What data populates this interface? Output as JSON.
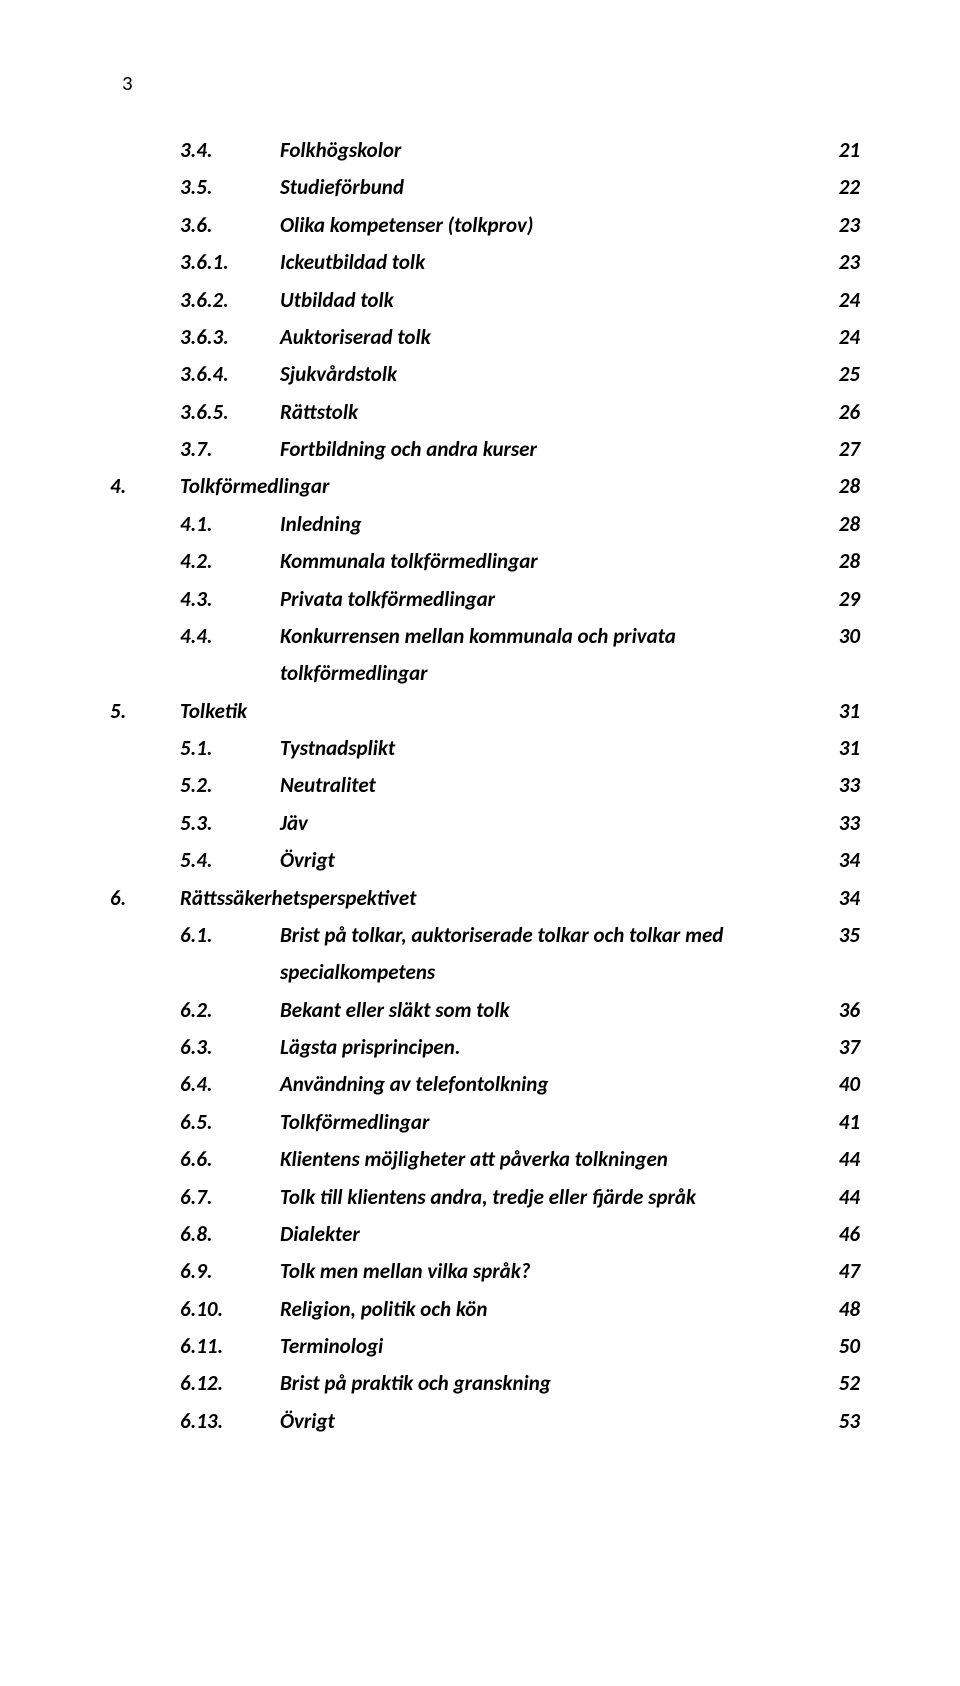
{
  "page_number_top": "3",
  "typography": {
    "font_family": "Calibri",
    "font_size_pt": 16,
    "italic": true,
    "bold": true,
    "line_height": 1.78,
    "color": "#000000",
    "background": "#ffffff"
  },
  "entries": [
    {
      "indent": 1,
      "num": "3.4.",
      "title": "Folkhögskolor",
      "page": "21"
    },
    {
      "indent": 1,
      "num": "3.5.",
      "title": "Studieförbund",
      "page": "22"
    },
    {
      "indent": 1,
      "num": "3.6.",
      "title": "Olika kompetenser (tolkprov)",
      "page": "23"
    },
    {
      "indent": 1,
      "num": "3.6.1.",
      "title": "Ickeutbildad tolk",
      "page": "23",
      "sub": true
    },
    {
      "indent": 1,
      "num": "3.6.2.",
      "title": "Utbildad tolk",
      "page": "24",
      "sub": true
    },
    {
      "indent": 1,
      "num": "3.6.3.",
      "title": "Auktoriserad tolk",
      "page": "24",
      "sub": true
    },
    {
      "indent": 1,
      "num": "3.6.4.",
      "title": "Sjukvårdstolk",
      "page": "25",
      "sub": true
    },
    {
      "indent": 1,
      "num": "3.6.5.",
      "title": "Rättstolk",
      "page": "26",
      "sub": true
    },
    {
      "indent": 1,
      "num": "3.7.",
      "title": "Fortbildning och andra kurser",
      "page": "27"
    },
    {
      "indent": 0,
      "num": "4.",
      "title": "Tolkförmedlingar",
      "page": "28"
    },
    {
      "indent": 1,
      "num": "4.1.",
      "title": "Inledning",
      "page": "28"
    },
    {
      "indent": 1,
      "num": "4.2.",
      "title": "Kommunala tolkförmedlingar",
      "page": "28"
    },
    {
      "indent": 1,
      "num": "4.3.",
      "title": "Privata tolkförmedlingar",
      "page": "29"
    },
    {
      "indent": 1,
      "num": "4.4.",
      "title": "Konkurrensen mellan kommunala och privata",
      "cont": "tolkförmedlingar",
      "page": "30"
    },
    {
      "indent": 0,
      "num": "5.",
      "title": "Tolketik",
      "page": "31"
    },
    {
      "indent": 1,
      "num": "5.1.",
      "title": "Tystnadsplikt",
      "page": "31"
    },
    {
      "indent": 1,
      "num": "5.2.",
      "title": "Neutralitet",
      "page": "33"
    },
    {
      "indent": 1,
      "num": "5.3.",
      "title": "Jäv",
      "page": "33"
    },
    {
      "indent": 1,
      "num": "5.4.",
      "title": "Övrigt",
      "page": "34"
    },
    {
      "indent": 0,
      "num": "6.",
      "title": "Rättssäkerhetsperspektivet",
      "page": "34"
    },
    {
      "indent": 1,
      "num": "6.1.",
      "title": "Brist på tolkar, auktoriserade tolkar och tolkar med",
      "cont": "specialkompetens",
      "page": "35"
    },
    {
      "indent": 1,
      "num": "6.2.",
      "title": "Bekant eller släkt som tolk",
      "page": "36"
    },
    {
      "indent": 1,
      "num": "6.3.",
      "title": "Lägsta prisprincipen.",
      "page": "37"
    },
    {
      "indent": 1,
      "num": "6.4.",
      "title": "Användning av telefontolkning",
      "page": "40"
    },
    {
      "indent": 1,
      "num": "6.5.",
      "title": "Tolkförmedlingar",
      "page": "41"
    },
    {
      "indent": 1,
      "num": "6.6.",
      "title": "Klientens möjligheter att påverka tolkningen",
      "page": "44"
    },
    {
      "indent": 1,
      "num": "6.7.",
      "title": "Tolk till klientens andra, tredje eller fjärde språk",
      "page": "44"
    },
    {
      "indent": 1,
      "num": "6.8.",
      "title": "Dialekter",
      "page": "46"
    },
    {
      "indent": 1,
      "num": "6.9.",
      "title": "Tolk men mellan vilka språk?",
      "page": "47"
    },
    {
      "indent": 1,
      "num": "6.10.",
      "title": "Religion, politik och kön",
      "page": "48"
    },
    {
      "indent": 1,
      "num": "6.11.",
      "title": "Terminologi",
      "page": "50"
    },
    {
      "indent": 1,
      "num": "6.12.",
      "title": "Brist på praktik och granskning",
      "page": "52"
    },
    {
      "indent": 1,
      "num": "6.13.",
      "title": "Övrigt",
      "page": "53"
    }
  ]
}
